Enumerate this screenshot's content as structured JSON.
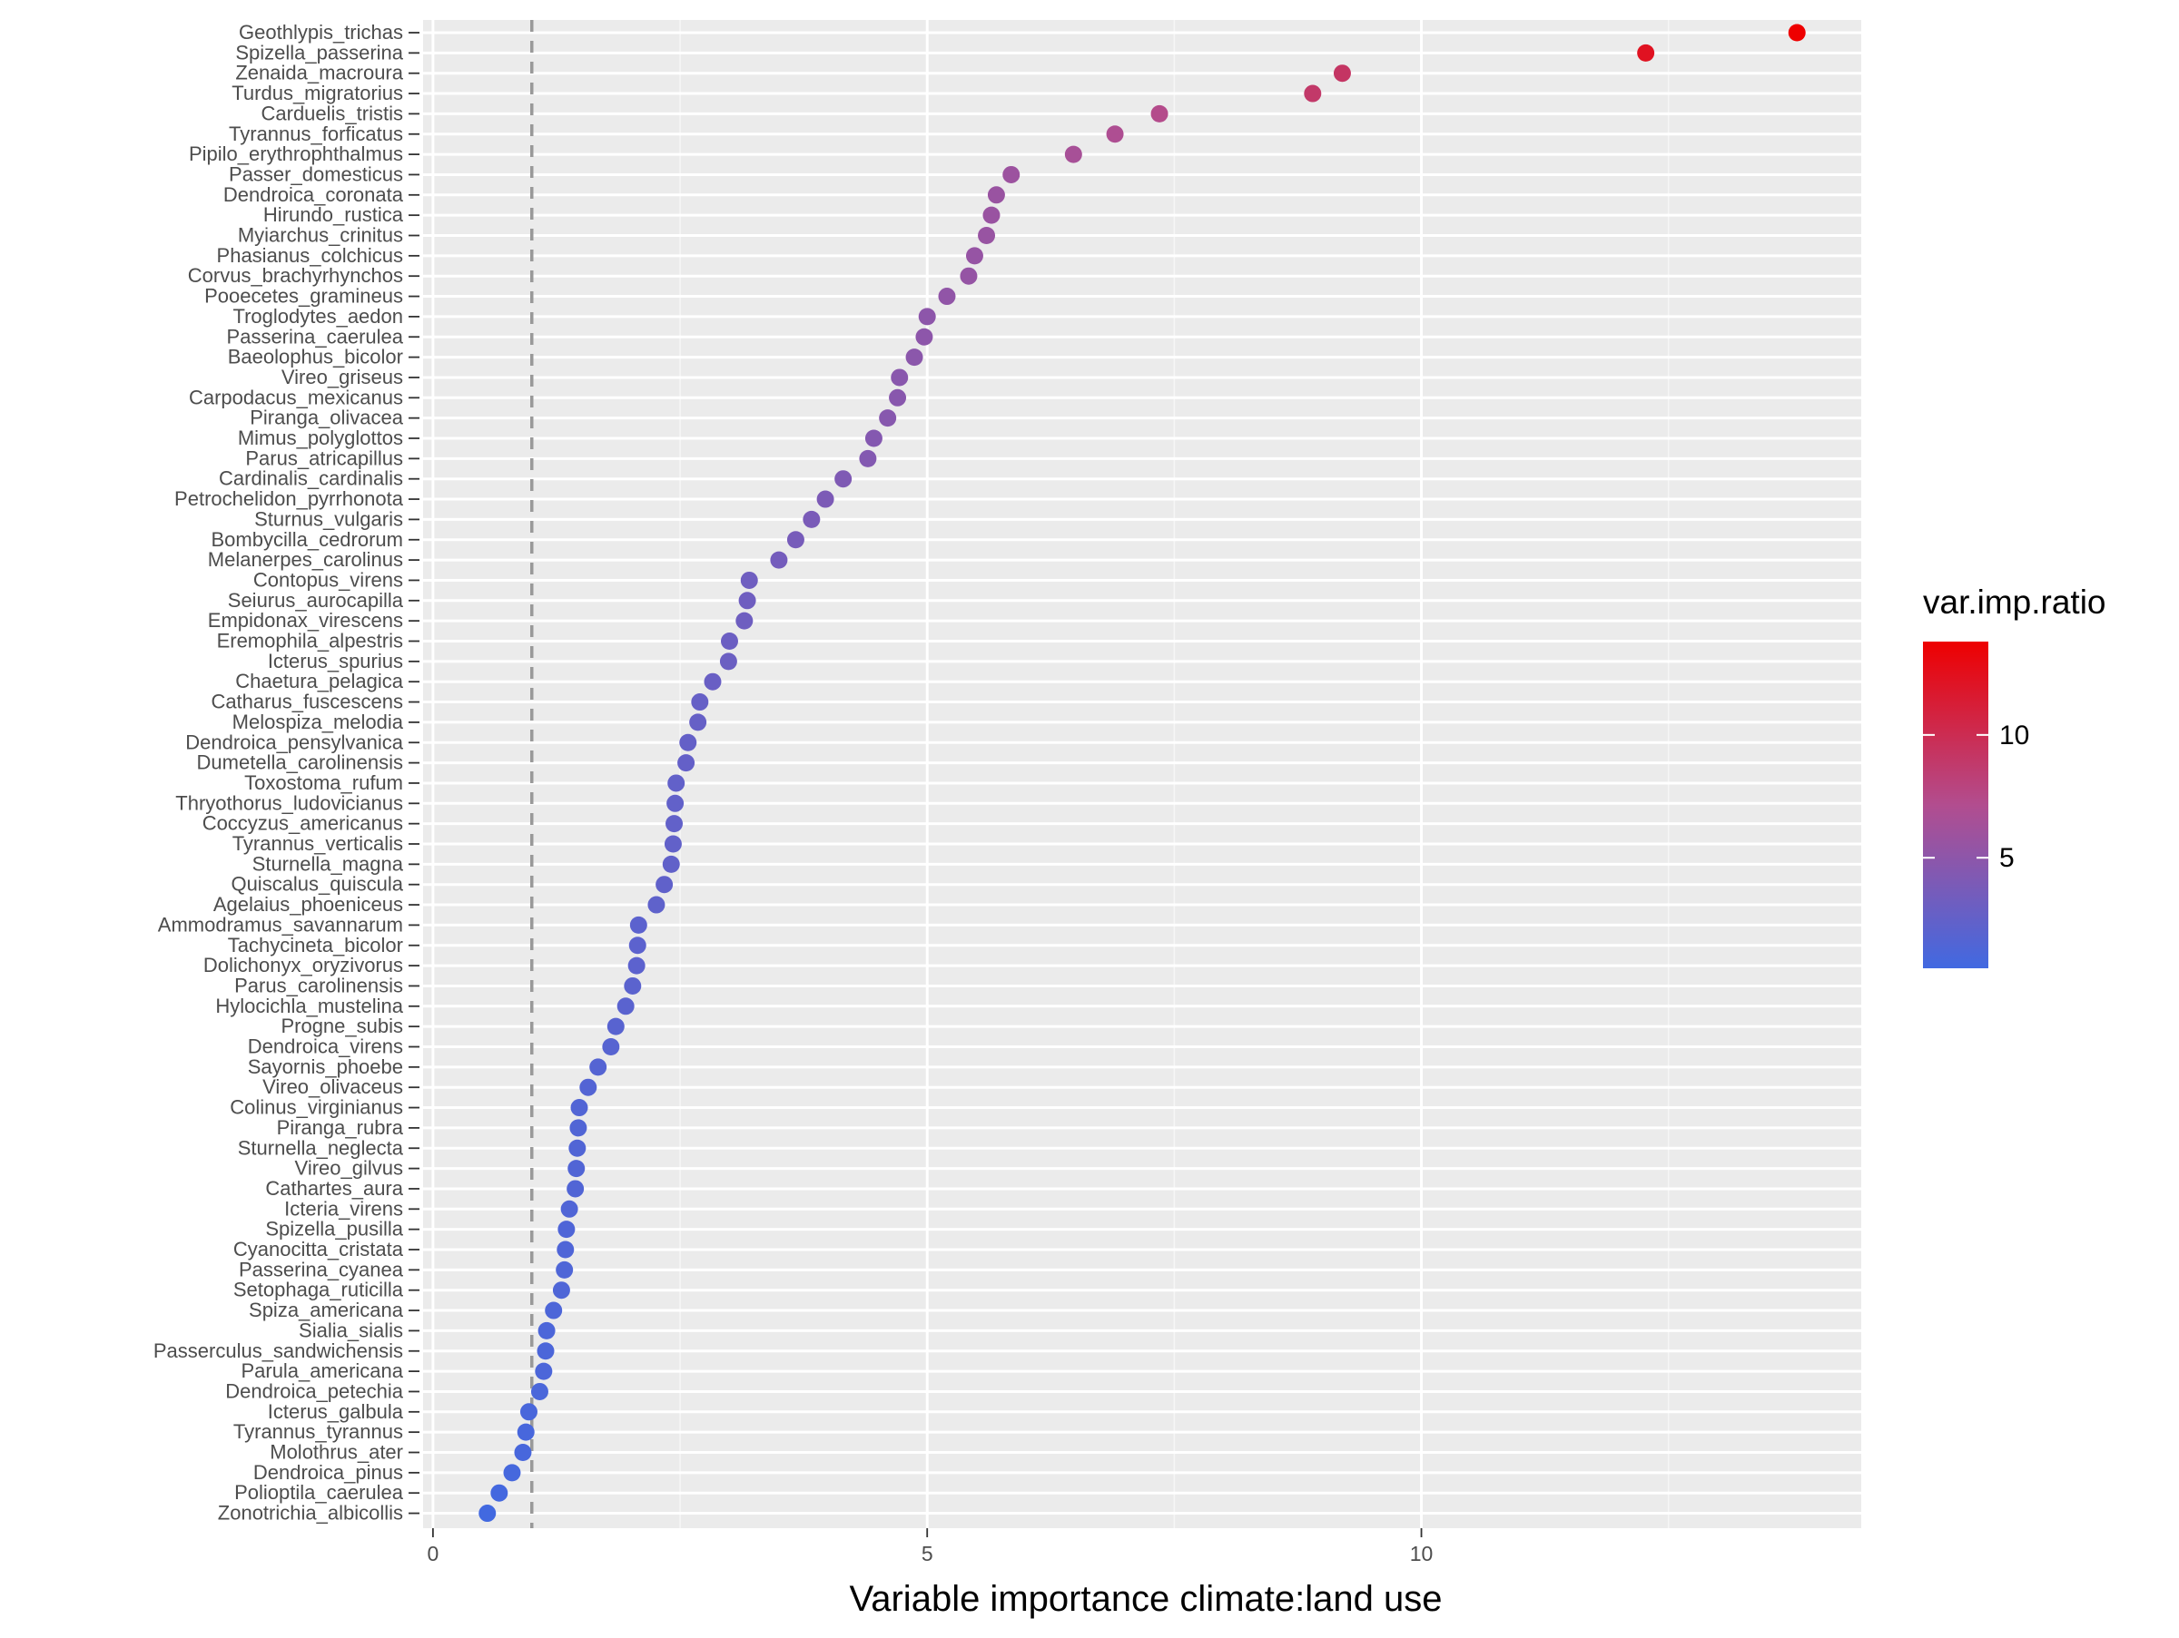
{
  "chart_data": {
    "type": "scatter",
    "xlabel": "Variable importance climate:land use",
    "ylabel": "",
    "xlim": [
      -0.1,
      14.45
    ],
    "x_ticks": [
      0,
      5,
      10
    ],
    "x_tick_labels": [
      "0",
      "5",
      "10"
    ],
    "reference_line": {
      "x": 1,
      "style": "dashed",
      "color": "#999999"
    },
    "grid": true,
    "panel_background": "#ebebeb",
    "color_scale": {
      "title": "var.imp.ratio",
      "low_color": "#4169e1",
      "mid_color": "#b24d8f",
      "high_color": "#ee0000",
      "min": 0.5,
      "max": 13.8,
      "breaks": [
        5,
        10
      ],
      "break_labels": [
        "5",
        "10"
      ]
    },
    "legend_position": "right",
    "points": [
      {
        "species": "Geothlypis_trichas",
        "value": 13.8
      },
      {
        "species": "Spizella_passerina",
        "value": 12.27
      },
      {
        "species": "Zenaida_macroura",
        "value": 9.2
      },
      {
        "species": "Turdus_migratorius",
        "value": 8.9
      },
      {
        "species": "Carduelis_tristis",
        "value": 7.35
      },
      {
        "species": "Tyrannus_forficatus",
        "value": 6.9
      },
      {
        "species": "Pipilo_erythrophthalmus",
        "value": 6.48
      },
      {
        "species": "Passer_domesticus",
        "value": 5.85
      },
      {
        "species": "Dendroica_coronata",
        "value": 5.7
      },
      {
        "species": "Hirundo_rustica",
        "value": 5.65
      },
      {
        "species": "Myiarchus_crinitus",
        "value": 5.6
      },
      {
        "species": "Phasianus_colchicus",
        "value": 5.48
      },
      {
        "species": "Corvus_brachyrhynchos",
        "value": 5.42
      },
      {
        "species": "Pooecetes_gramineus",
        "value": 5.2
      },
      {
        "species": "Troglodytes_aedon",
        "value": 5.0
      },
      {
        "species": "Passerina_caerulea",
        "value": 4.97
      },
      {
        "species": "Baeolophus_bicolor",
        "value": 4.87
      },
      {
        "species": "Vireo_griseus",
        "value": 4.72
      },
      {
        "species": "Carpodacus_mexicanus",
        "value": 4.7
      },
      {
        "species": "Piranga_olivacea",
        "value": 4.6
      },
      {
        "species": "Mimus_polyglottos",
        "value": 4.46
      },
      {
        "species": "Parus_atricapillus",
        "value": 4.4
      },
      {
        "species": "Cardinalis_cardinalis",
        "value": 4.15
      },
      {
        "species": "Petrochelidon_pyrrhonota",
        "value": 3.97
      },
      {
        "species": "Sturnus_vulgaris",
        "value": 3.83
      },
      {
        "species": "Bombycilla_cedrorum",
        "value": 3.67
      },
      {
        "species": "Melanerpes_carolinus",
        "value": 3.5
      },
      {
        "species": "Contopus_virens",
        "value": 3.2
      },
      {
        "species": "Seiurus_aurocapilla",
        "value": 3.18
      },
      {
        "species": "Empidonax_virescens",
        "value": 3.15
      },
      {
        "species": "Eremophila_alpestris",
        "value": 3.0
      },
      {
        "species": "Icterus_spurius",
        "value": 2.99
      },
      {
        "species": "Chaetura_pelagica",
        "value": 2.83
      },
      {
        "species": "Catharus_fuscescens",
        "value": 2.7
      },
      {
        "species": "Melospiza_melodia",
        "value": 2.68
      },
      {
        "species": "Dendroica_pensylvanica",
        "value": 2.58
      },
      {
        "species": "Dumetella_carolinensis",
        "value": 2.56
      },
      {
        "species": "Toxostoma_rufum",
        "value": 2.46
      },
      {
        "species": "Thryothorus_ludovicianus",
        "value": 2.45
      },
      {
        "species": "Coccyzus_americanus",
        "value": 2.44
      },
      {
        "species": "Tyrannus_verticalis",
        "value": 2.43
      },
      {
        "species": "Sturnella_magna",
        "value": 2.41
      },
      {
        "species": "Quiscalus_quiscula",
        "value": 2.34
      },
      {
        "species": "Agelaius_phoeniceus",
        "value": 2.26
      },
      {
        "species": "Ammodramus_savannarum",
        "value": 2.08
      },
      {
        "species": "Tachycineta_bicolor",
        "value": 2.07
      },
      {
        "species": "Dolichonyx_oryzivorus",
        "value": 2.06
      },
      {
        "species": "Parus_carolinensis",
        "value": 2.02
      },
      {
        "species": "Hylocichla_mustelina",
        "value": 1.95
      },
      {
        "species": "Progne_subis",
        "value": 1.85
      },
      {
        "species": "Dendroica_virens",
        "value": 1.8
      },
      {
        "species": "Sayornis_phoebe",
        "value": 1.67
      },
      {
        "species": "Vireo_olivaceus",
        "value": 1.57
      },
      {
        "species": "Colinus_virginianus",
        "value": 1.48
      },
      {
        "species": "Piranga_rubra",
        "value": 1.47
      },
      {
        "species": "Sturnella_neglecta",
        "value": 1.46
      },
      {
        "species": "Vireo_gilvus",
        "value": 1.45
      },
      {
        "species": "Cathartes_aura",
        "value": 1.44
      },
      {
        "species": "Icteria_virens",
        "value": 1.38
      },
      {
        "species": "Spizella_pusilla",
        "value": 1.35
      },
      {
        "species": "Cyanocitta_cristata",
        "value": 1.34
      },
      {
        "species": "Passerina_cyanea",
        "value": 1.33
      },
      {
        "species": "Setophaga_ruticilla",
        "value": 1.3
      },
      {
        "species": "Spiza_americana",
        "value": 1.22
      },
      {
        "species": "Sialia_sialis",
        "value": 1.15
      },
      {
        "species": "Passerculus_sandwichensis",
        "value": 1.14
      },
      {
        "species": "Parula_americana",
        "value": 1.12
      },
      {
        "species": "Dendroica_petechia",
        "value": 1.08
      },
      {
        "species": "Icterus_galbula",
        "value": 0.97
      },
      {
        "species": "Tyrannus_tyrannus",
        "value": 0.94
      },
      {
        "species": "Molothrus_ater",
        "value": 0.91
      },
      {
        "species": "Dendroica_pinus",
        "value": 0.8
      },
      {
        "species": "Polioptila_caerulea",
        "value": 0.67
      },
      {
        "species": "Zonotrichia_albicollis",
        "value": 0.55
      }
    ]
  }
}
